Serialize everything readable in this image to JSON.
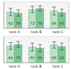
{
  "chart_data": [
    {
      "type": "bar",
      "categories": [
        "task A",
        "task B",
        "task C"
      ],
      "series": [
        {
          "color": "#b9e4c1",
          "values": [
            62,
            72,
            66
          ],
          "errors": [
            14,
            12,
            15
          ]
        },
        {
          "color": "#7cc795",
          "values": [
            58,
            76,
            60
          ],
          "errors": [
            12,
            10,
            13
          ]
        }
      ],
      "ylim": [
        0,
        100
      ],
      "yticks": [
        0,
        25,
        50,
        75,
        100
      ],
      "grid": true,
      "data_labels": true,
      "tick_labels": "x"
    },
    {
      "type": "bar",
      "categories": [
        "task A",
        "task B",
        "task C"
      ],
      "series": [
        {
          "color": "#b9e4c1",
          "values": [
            64,
            60,
            68
          ],
          "errors": [
            13,
            15,
            12
          ]
        },
        {
          "color": "#7cc795",
          "values": [
            70,
            56,
            62
          ],
          "errors": [
            11,
            14,
            13
          ]
        }
      ],
      "ylim": [
        0,
        100
      ],
      "yticks": [
        0,
        25,
        50,
        75,
        100
      ],
      "grid": true,
      "data_labels": true,
      "tick_labels": "x"
    }
  ]
}
